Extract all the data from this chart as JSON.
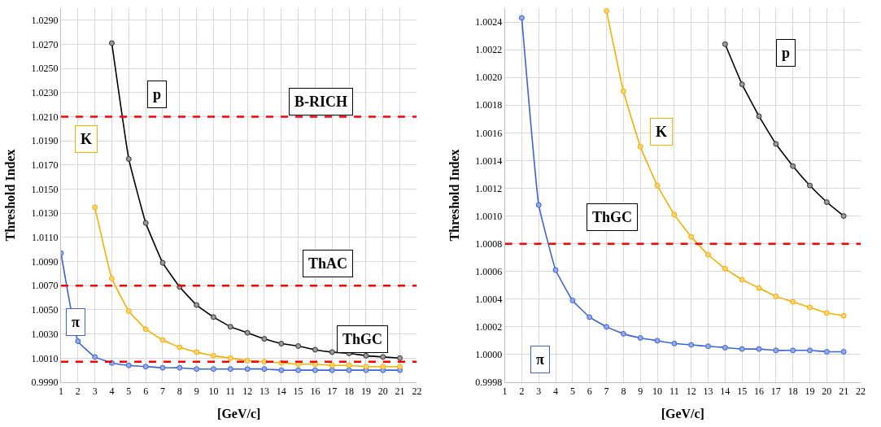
{
  "chart_data": [
    {
      "type": "line",
      "xlabel": "[GeV/c]",
      "ylabel": "Threshold Index",
      "x": [
        1,
        2,
        3,
        4,
        5,
        6,
        7,
        8,
        9,
        10,
        11,
        12,
        13,
        14,
        15,
        16,
        17,
        18,
        19,
        20,
        21
      ],
      "xlim": [
        1,
        22
      ],
      "xticks": [
        1,
        2,
        3,
        4,
        5,
        6,
        7,
        8,
        9,
        10,
        11,
        12,
        13,
        14,
        15,
        16,
        17,
        18,
        19,
        20,
        21,
        22
      ],
      "ylim": [
        0.999,
        1.03
      ],
      "yticks": [
        {
          "value": 0.999,
          "label": "0.9990"
        },
        {
          "value": 1.001,
          "label": "1.0010"
        },
        {
          "value": 1.003,
          "label": "1.0030"
        },
        {
          "value": 1.005,
          "label": "1.0050"
        },
        {
          "value": 1.007,
          "label": "1.0070"
        },
        {
          "value": 1.009,
          "label": "1.0090"
        },
        {
          "value": 1.011,
          "label": "1.0110"
        },
        {
          "value": 1.013,
          "label": "1.0130"
        },
        {
          "value": 1.015,
          "label": "1.0150"
        },
        {
          "value": 1.017,
          "label": "1.0170"
        },
        {
          "value": 1.019,
          "label": "1.0190"
        },
        {
          "value": 1.021,
          "label": "1.0210"
        },
        {
          "value": 1.023,
          "label": "1.0230"
        },
        {
          "value": 1.025,
          "label": "1.0250"
        },
        {
          "value": 1.027,
          "label": "1.0270"
        },
        {
          "value": 1.029,
          "label": "1.0290"
        }
      ],
      "grid": true,
      "legend": false,
      "marker": "circle",
      "line_style": "solid",
      "series": [
        {
          "name": "π",
          "color": "#3c64d8",
          "values": [
            1.0097,
            1.0024,
            1.0011,
            1.0006,
            1.0004,
            1.0003,
            1.0002,
            1.0002,
            1.0001,
            1.0001,
            1.0001,
            1.0001,
            1.0001,
            1.0,
            1.0,
            1.0,
            1.0,
            1.0,
            1.0,
            1.0,
            1.0
          ]
        },
        {
          "name": "K",
          "color": "#f5b000",
          "values": [
            null,
            null,
            1.0135,
            1.0076,
            1.0049,
            1.0034,
            1.0025,
            1.0019,
            1.0015,
            1.0012,
            1.001,
            1.0008,
            1.0007,
            1.0006,
            1.0005,
            1.0005,
            1.0004,
            1.0004,
            1.0003,
            1.0003,
            1.0003
          ]
        },
        {
          "name": "p",
          "color": "#000000",
          "values": [
            null,
            null,
            null,
            1.0271,
            1.0175,
            1.0122,
            1.0089,
            1.0069,
            1.0054,
            1.0044,
            1.0036,
            1.0031,
            1.0026,
            1.0022,
            1.002,
            1.0017,
            1.0015,
            1.0014,
            1.0012,
            1.0011,
            1.001
          ]
        }
      ],
      "ref_lines": [
        {
          "axis": "y",
          "value": 1.021,
          "label": "B-RICH",
          "color": "#ff0000",
          "line_style": "dashed"
        },
        {
          "axis": "y",
          "value": 1.007,
          "label": "ThAC",
          "color": "#ff0000",
          "line_style": "dashed"
        },
        {
          "axis": "y",
          "value": 1.0007,
          "label": "ThGC",
          "color": "#ff0000",
          "line_style": "dashed"
        }
      ]
    },
    {
      "type": "line",
      "xlabel": "[GeV/c]",
      "ylabel": "Threshold Index",
      "x": [
        2,
        3,
        4,
        5,
        6,
        7,
        8,
        9,
        10,
        11,
        12,
        13,
        14,
        15,
        16,
        17,
        18,
        19,
        20,
        21
      ],
      "xlim": [
        1,
        22
      ],
      "xticks": [
        1,
        2,
        3,
        4,
        5,
        6,
        7,
        8,
        9,
        10,
        11,
        12,
        13,
        14,
        15,
        16,
        17,
        18,
        19,
        20,
        21,
        22
      ],
      "ylim": [
        0.9998,
        1.0025
      ],
      "yticks": [
        {
          "value": 0.9998,
          "label": "0.9998"
        },
        {
          "value": 1.0,
          "label": "1.0000"
        },
        {
          "value": 1.0002,
          "label": "1.0002"
        },
        {
          "value": 1.0004,
          "label": "1.0004"
        },
        {
          "value": 1.0006,
          "label": "1.0006"
        },
        {
          "value": 1.0008,
          "label": "1.0008"
        },
        {
          "value": 1.001,
          "label": "1.0010"
        },
        {
          "value": 1.0012,
          "label": "1.0012"
        },
        {
          "value": 1.0014,
          "label": "1.0014"
        },
        {
          "value": 1.0016,
          "label": "1.0016"
        },
        {
          "value": 1.0018,
          "label": "1.0018"
        },
        {
          "value": 1.002,
          "label": "1.0020"
        },
        {
          "value": 1.0022,
          "label": "1.0022"
        },
        {
          "value": 1.0024,
          "label": "1.0024"
        }
      ],
      "grid": true,
      "legend": false,
      "marker": "circle",
      "line_style": "solid",
      "series": [
        {
          "name": "π",
          "color": "#3c64d8",
          "values": [
            1.00243,
            1.00108,
            1.00061,
            1.00039,
            1.00027,
            1.0002,
            1.00015,
            1.00012,
            1.0001,
            1.00008,
            1.00007,
            1.00006,
            1.00005,
            1.00004,
            1.00004,
            1.00003,
            1.00003,
            1.00003,
            1.00002,
            1.00002
          ]
        },
        {
          "name": "K",
          "color": "#f5b000",
          "values": [
            null,
            null,
            null,
            null,
            null,
            1.00248,
            1.0019,
            1.0015,
            1.00122,
            1.00101,
            1.00085,
            1.00072,
            1.00062,
            1.00054,
            1.00048,
            1.00042,
            1.00038,
            1.00034,
            1.0003,
            1.00028
          ]
        },
        {
          "name": "p",
          "color": "#000000",
          "values": [
            null,
            null,
            null,
            null,
            null,
            null,
            null,
            null,
            null,
            null,
            null,
            null,
            1.00224,
            1.00195,
            1.00172,
            1.00152,
            1.00136,
            1.00122,
            1.0011,
            1.001
          ]
        }
      ],
      "ref_lines": [
        {
          "axis": "y",
          "value": 1.0008,
          "label": "ThGC",
          "color": "#ff0000",
          "line_style": "dashed"
        }
      ]
    }
  ]
}
